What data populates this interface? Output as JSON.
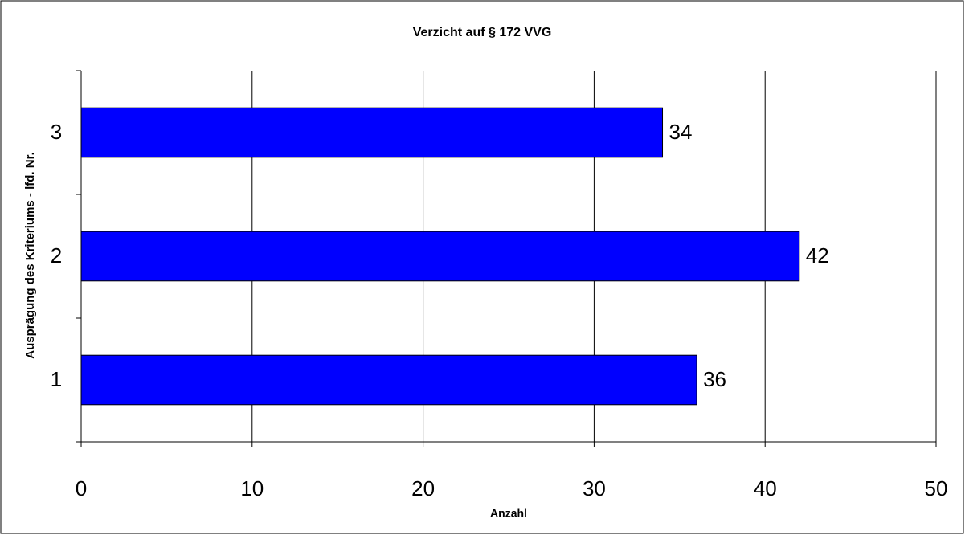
{
  "chart_data": {
    "type": "bar",
    "orientation": "horizontal",
    "title": "Verzicht auf § 172 VVG",
    "x_label": "Anzahl",
    "y_label": "Ausprägung des Kriteriums - lfd. Nr.",
    "categories": [
      "1",
      "2",
      "3"
    ],
    "values": [
      36,
      42,
      34
    ],
    "color": "#0000ff",
    "xlim": [
      0,
      50
    ],
    "xticks": [
      0,
      10,
      20,
      30,
      40,
      50
    ],
    "grid": true
  }
}
